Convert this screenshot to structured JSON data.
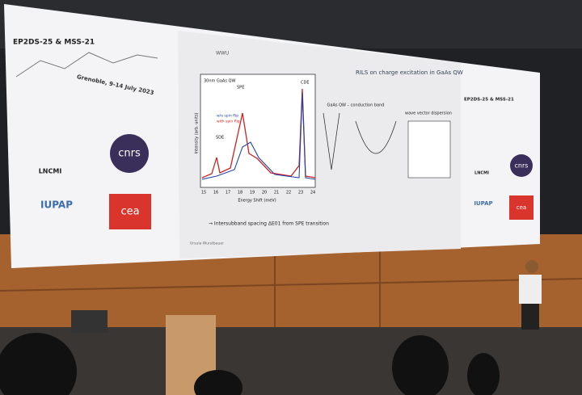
{
  "slide": {
    "left_panel": {
      "conference": "EP2DS-25 & MSS-21",
      "location": "Grenoble, 9-14 July 2023",
      "logos": [
        "LNCMI",
        "cnrs",
        "IUPAP",
        "cea"
      ]
    },
    "header": {
      "logo": "WWU",
      "title": "RILS on charge excitation in GaAs QW"
    },
    "plot": {
      "sample": "30nm GaAs QW",
      "y_label": "Intensity (arb. units)",
      "x_label": "Energy Shift (meV)",
      "peaks": [
        "SDE",
        "SPE",
        "CDE"
      ],
      "legend": [
        "w/o spin flip",
        "with spin flip"
      ],
      "x_ticks": [
        "15",
        "16",
        "17",
        "18",
        "19",
        "20",
        "21",
        "22",
        "23",
        "24"
      ]
    },
    "diagrams": {
      "band": "GaAs QW – conduction band",
      "dispersion": "wave vector dispersion"
    },
    "note": "→ Intersubband spacing ΔE01 from SPE transition",
    "footer": "Ursula Wurstbauer",
    "right_panel": {
      "conference": "EP2DS-25 & MSS-21",
      "logos": [
        "LNCMI",
        "cnrs",
        "IUPAP",
        "cea"
      ]
    }
  }
}
